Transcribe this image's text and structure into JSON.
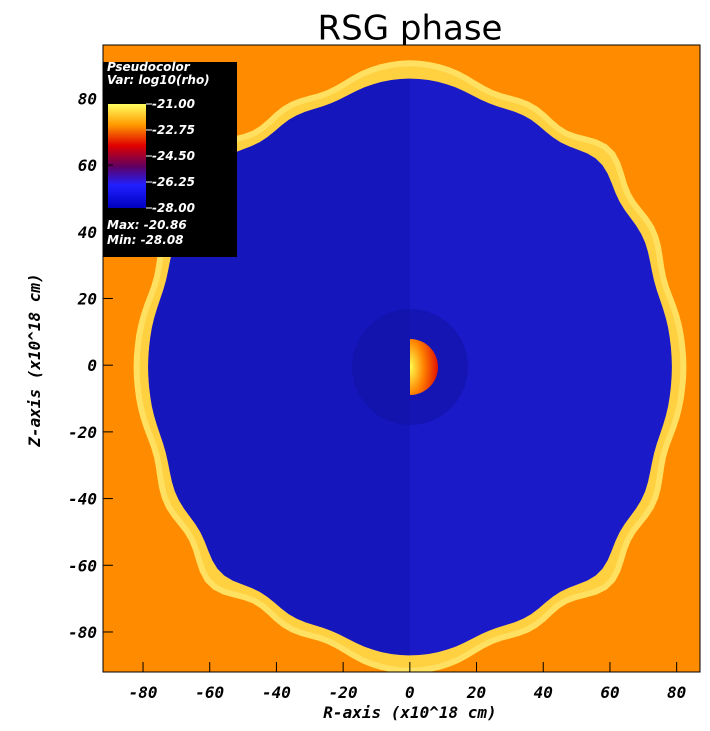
{
  "chart_data": {
    "type": "pseudocolor",
    "title": "RSG phase",
    "x_label": "R-axis (x10^18 cm)",
    "y_label": "Z-axis (x10^18 cm)",
    "xlim": [
      -92,
      87
    ],
    "ylim": [
      -92,
      96
    ],
    "xticks": [
      -80,
      -60,
      -40,
      -20,
      0,
      20,
      40,
      60,
      80
    ],
    "yticks": [
      -80,
      -60,
      -40,
      -20,
      0,
      20,
      40,
      60,
      80
    ],
    "legend": {
      "title": "Pseudocolor",
      "var": "Var: log10(rho)",
      "ticks": [
        {
          "value": -21,
          "label": "-21.00"
        },
        {
          "value": -22.75,
          "label": "-22.75"
        },
        {
          "value": -24.5,
          "label": "-24.50"
        },
        {
          "value": -26.25,
          "label": "-26.25"
        },
        {
          "value": -28,
          "label": "-28.00"
        }
      ],
      "max": "Max: -20.86",
      "min": "Min: -28.08"
    }
  }
}
